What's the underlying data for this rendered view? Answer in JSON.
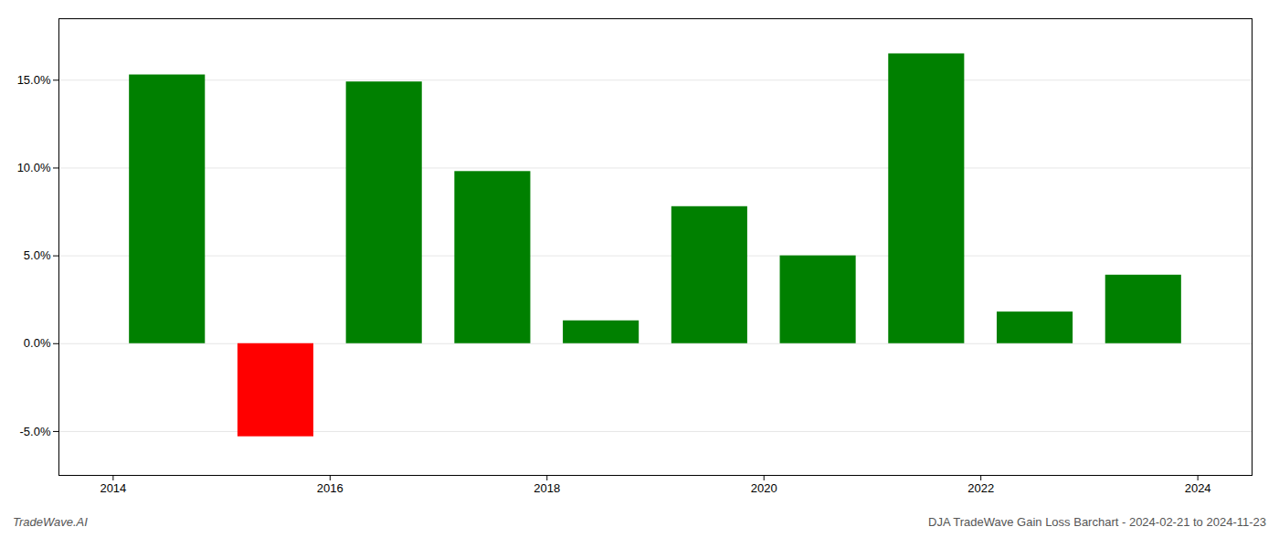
{
  "chart_data": {
    "type": "bar",
    "x": [
      2014,
      2015,
      2016,
      2017,
      2018,
      2019,
      2020,
      2021,
      2022,
      2023
    ],
    "values": [
      0.153,
      -0.053,
      0.149,
      0.098,
      0.013,
      0.078,
      0.05,
      0.165,
      0.018,
      0.039
    ],
    "colors": [
      "#008000",
      "#ff0000",
      "#008000",
      "#008000",
      "#008000",
      "#008000",
      "#008000",
      "#008000",
      "#008000",
      "#008000"
    ],
    "xlim": [
      2013.5,
      2024.5
    ],
    "xticks": [
      2014,
      2016,
      2018,
      2020,
      2022,
      2024
    ],
    "ylim": [
      -0.075,
      0.185
    ],
    "yticks": [
      {
        "value": -0.05,
        "label": "-5.0%"
      },
      {
        "value": 0.0,
        "label": "0.0%"
      },
      {
        "value": 0.05,
        "label": "5.0%"
      },
      {
        "value": 0.1,
        "label": "10.0%"
      },
      {
        "value": 0.15,
        "label": "15.0%"
      }
    ],
    "grid": true,
    "annotations": [
      "TradeWave.AI",
      "DJA TradeWave Gain Loss Barchart - 2024-02-21 to 2024-11-23"
    ]
  }
}
